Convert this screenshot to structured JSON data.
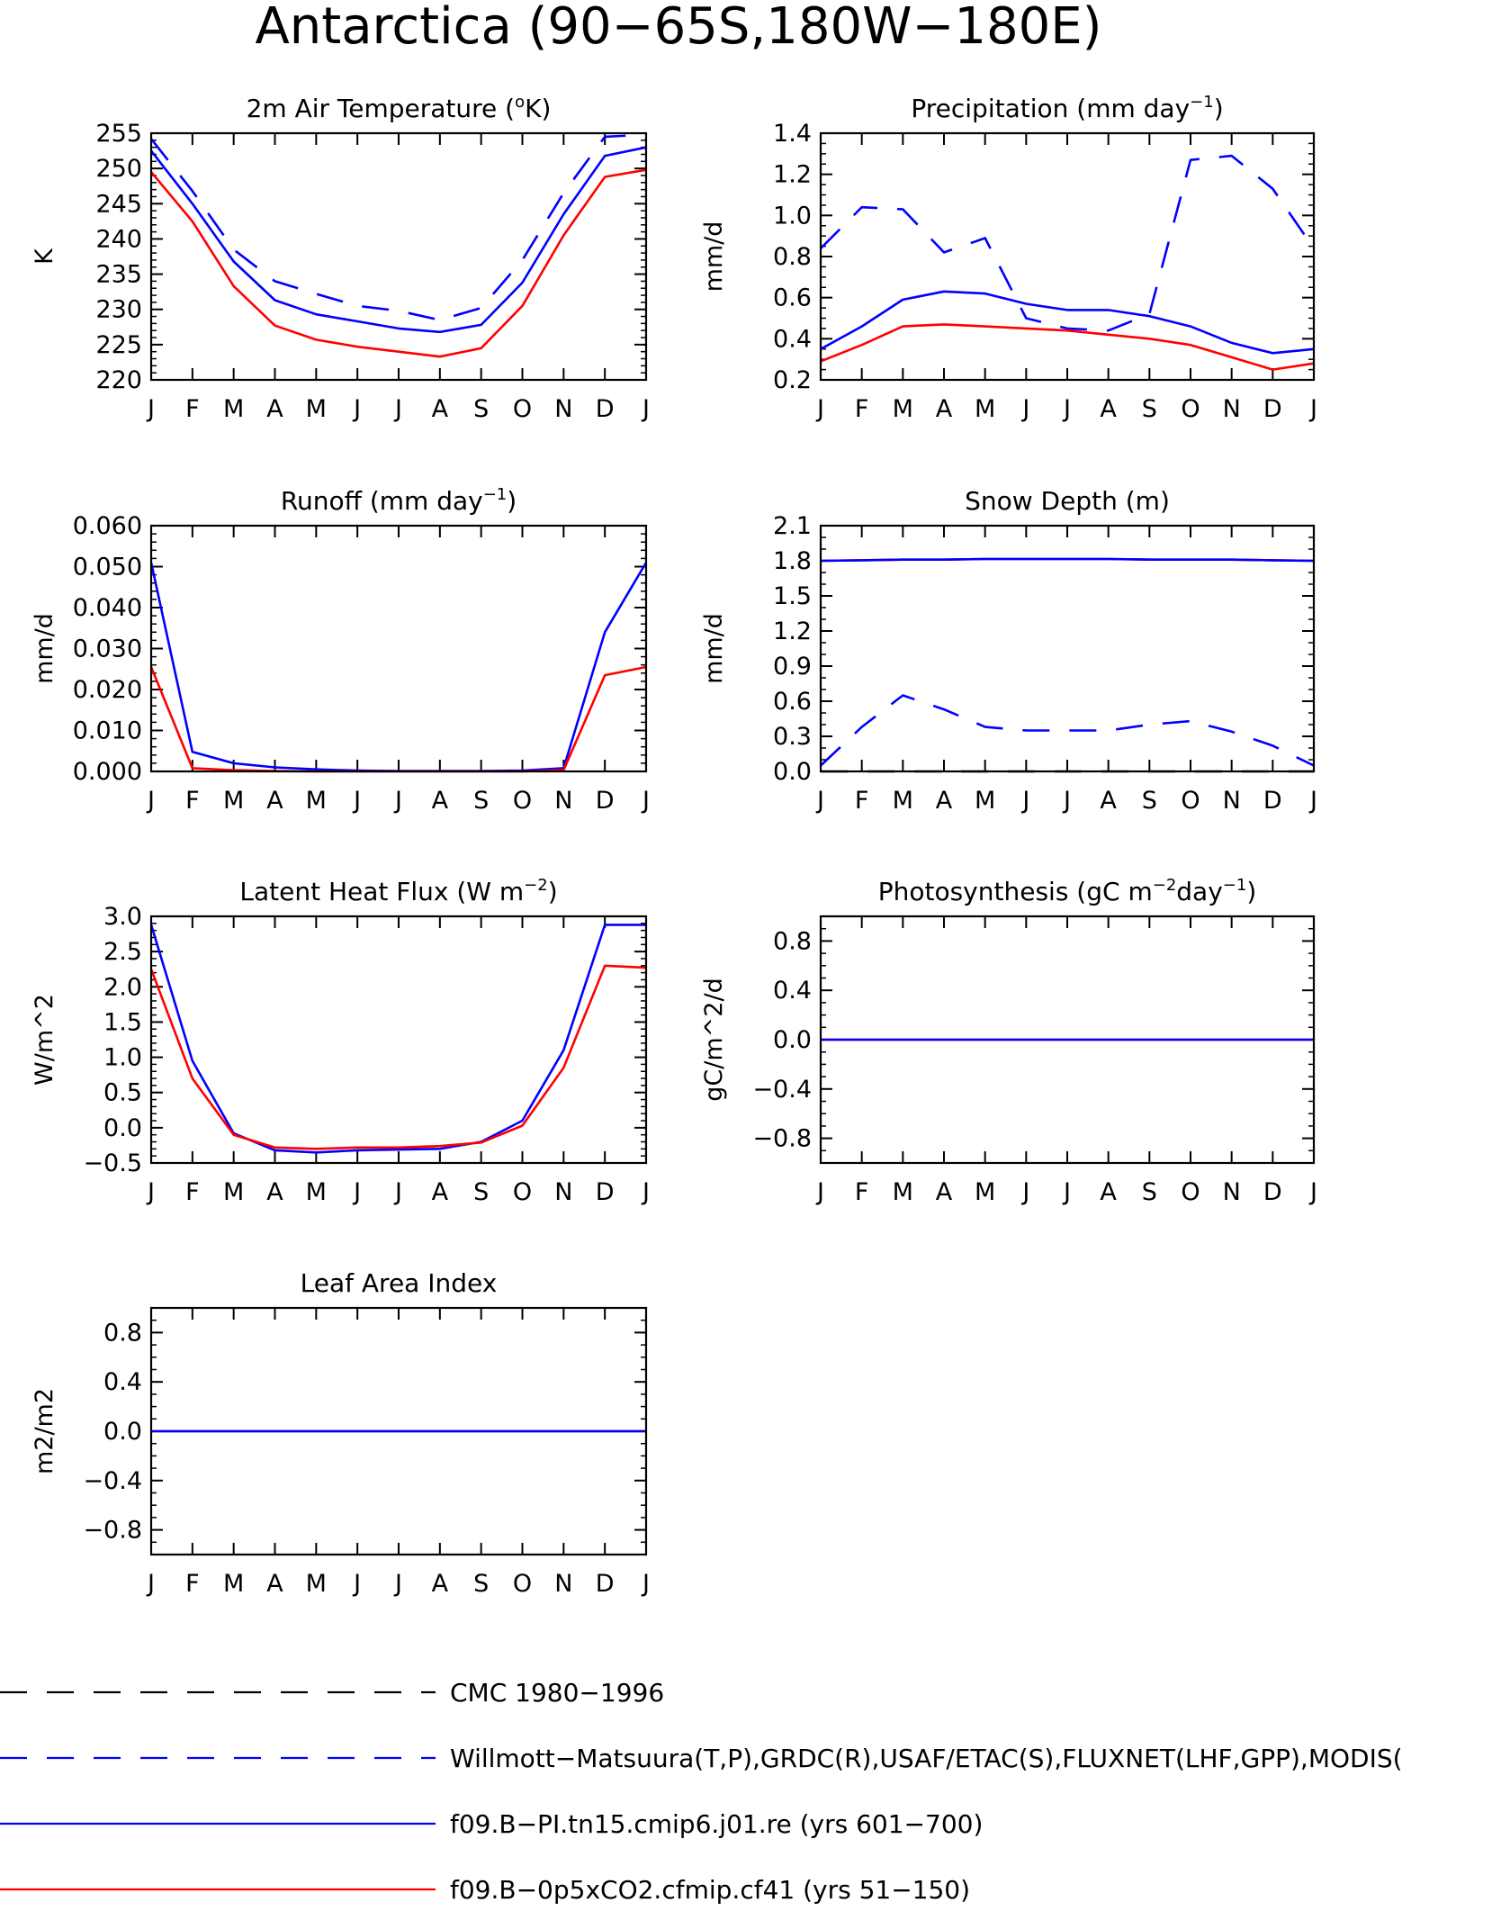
{
  "title": "Antarctica (90−65S,180W−180E)",
  "month_labels": [
    "J",
    "F",
    "M",
    "A",
    "M",
    "J",
    "J",
    "A",
    "S",
    "O",
    "N",
    "D",
    "J"
  ],
  "colors": {
    "obs_cmc": "#000000",
    "obs_multi": "#0000ff",
    "case1": "#0000ff",
    "case2": "#ff0000",
    "axis": "#000000"
  },
  "chart_data": [
    {
      "type": "line",
      "title_main": "2m Air Temperature (",
      "title_sup": "o",
      "title_tail": "K)",
      "ylabel": "K",
      "ylim": [
        220,
        255
      ],
      "yticks": [
        220,
        225,
        230,
        235,
        240,
        245,
        250,
        255
      ],
      "ytick_labels": [
        "220",
        "225",
        "230",
        "235",
        "240",
        "245",
        "250",
        "255"
      ],
      "minor_step": 1,
      "series": [
        {
          "line": "obs_multi",
          "dashed": true,
          "values": [
            254.2,
            246.8,
            238.5,
            234.0,
            232.2,
            230.5,
            229.8,
            228.5,
            230.2,
            237.0,
            246.5,
            254.5,
            254.8
          ]
        },
        {
          "line": "case1",
          "dashed": false,
          "values": [
            252.5,
            245.0,
            236.8,
            231.3,
            229.3,
            228.3,
            227.3,
            226.8,
            227.8,
            233.8,
            243.5,
            251.8,
            253.0
          ]
        },
        {
          "line": "case2",
          "dashed": false,
          "values": [
            249.5,
            242.5,
            233.3,
            227.7,
            225.7,
            224.7,
            224.0,
            223.3,
            224.5,
            230.5,
            240.5,
            248.8,
            249.8
          ]
        }
      ]
    },
    {
      "type": "line",
      "title_main": "Precipitation (mm day",
      "title_sup": "−1",
      "title_tail": ")",
      "ylabel": "mm/d",
      "ylim": [
        0.2,
        1.4
      ],
      "yticks": [
        0.2,
        0.4,
        0.6,
        0.8,
        1.0,
        1.2,
        1.4
      ],
      "ytick_labels": [
        "0.2",
        "0.4",
        "0.6",
        "0.8",
        "1.0",
        "1.2",
        "1.4"
      ],
      "minor_step": 0.05,
      "series": [
        {
          "line": "obs_multi",
          "dashed": true,
          "values": [
            0.84,
            1.04,
            1.03,
            0.82,
            0.89,
            0.5,
            0.45,
            0.44,
            0.52,
            1.27,
            1.29,
            1.13,
            0.84
          ]
        },
        {
          "line": "case1",
          "dashed": false,
          "values": [
            0.35,
            0.46,
            0.59,
            0.63,
            0.62,
            0.57,
            0.54,
            0.54,
            0.51,
            0.46,
            0.38,
            0.33,
            0.35
          ]
        },
        {
          "line": "case2",
          "dashed": false,
          "values": [
            0.29,
            0.37,
            0.46,
            0.47,
            0.46,
            0.45,
            0.44,
            0.42,
            0.4,
            0.37,
            0.31,
            0.25,
            0.28
          ]
        }
      ]
    },
    {
      "type": "line",
      "title_main": "Runoff (mm day",
      "title_sup": "−1",
      "title_tail": ")",
      "ylabel": "mm/d",
      "ylim": [
        0.0,
        0.06
      ],
      "yticks": [
        0.0,
        0.01,
        0.02,
        0.03,
        0.04,
        0.05,
        0.06
      ],
      "ytick_labels": [
        "0.000",
        "0.010",
        "0.020",
        "0.030",
        "0.040",
        "0.050",
        "0.060"
      ],
      "minor_step": 0.002,
      "series": [
        {
          "line": "case1",
          "dashed": false,
          "values": [
            0.051,
            0.0048,
            0.002,
            0.001,
            0.0005,
            0.0002,
            0.0001,
            0.0001,
            0.0001,
            0.0002,
            0.0008,
            0.034,
            0.051
          ]
        },
        {
          "line": "case2",
          "dashed": false,
          "values": [
            0.0255,
            0.0008,
            0.0003,
            0.0001,
            0.0,
            0.0,
            0.0,
            0.0,
            0.0,
            0.0,
            0.0003,
            0.0235,
            0.0255
          ]
        }
      ]
    },
    {
      "type": "line",
      "title_main": "Snow Depth (m)",
      "title_sup": "",
      "title_tail": "",
      "ylabel": "mm/d",
      "ylim": [
        0.0,
        2.1
      ],
      "yticks": [
        0.0,
        0.3,
        0.6,
        0.9,
        1.2,
        1.5,
        1.8,
        2.1
      ],
      "ytick_labels": [
        "0.0",
        "0.3",
        "0.6",
        "0.9",
        "1.2",
        "1.5",
        "1.8",
        "2.1"
      ],
      "minor_step": 0.1,
      "series": [
        {
          "line": "obs_cmc",
          "dashed": true,
          "values": [
            0.0,
            0.0,
            0.0,
            0.0,
            0.0,
            0.0,
            0.0,
            0.0,
            0.0,
            0.0,
            0.0,
            0.0,
            0.0
          ]
        },
        {
          "line": "obs_multi",
          "dashed": true,
          "values": [
            0.05,
            0.38,
            0.65,
            0.53,
            0.38,
            0.35,
            0.35,
            0.35,
            0.4,
            0.43,
            0.34,
            0.22,
            0.05
          ]
        },
        {
          "line": "case2",
          "dashed": false,
          "values": [
            1.8,
            1.805,
            1.81,
            1.81,
            1.815,
            1.815,
            1.815,
            1.815,
            1.81,
            1.81,
            1.81,
            1.805,
            1.8
          ]
        },
        {
          "line": "case1",
          "dashed": false,
          "values": [
            1.8,
            1.805,
            1.81,
            1.81,
            1.815,
            1.815,
            1.815,
            1.815,
            1.81,
            1.81,
            1.81,
            1.805,
            1.8
          ]
        }
      ]
    },
    {
      "type": "line",
      "title_main": "Latent Heat Flux (W m",
      "title_sup": "−2",
      "title_tail": ")",
      "ylabel": "W/m^2",
      "ylim": [
        -0.5,
        3.0
      ],
      "yticks": [
        -0.5,
        0.0,
        0.5,
        1.0,
        1.5,
        2.0,
        2.5,
        3.0
      ],
      "ytick_labels": [
        "−0.5",
        "0.0",
        "0.5",
        "1.0",
        "1.5",
        "2.0",
        "2.5",
        "3.0"
      ],
      "minor_step": 0.1,
      "series": [
        {
          "line": "case1",
          "dashed": false,
          "values": [
            2.88,
            0.95,
            -0.08,
            -0.32,
            -0.35,
            -0.32,
            -0.31,
            -0.3,
            -0.2,
            0.1,
            1.1,
            2.88,
            2.88
          ]
        },
        {
          "line": "case2",
          "dashed": false,
          "values": [
            2.25,
            0.7,
            -0.1,
            -0.28,
            -0.3,
            -0.28,
            -0.28,
            -0.26,
            -0.21,
            0.03,
            0.85,
            2.3,
            2.27
          ]
        }
      ]
    },
    {
      "type": "line",
      "title_main": "Photosynthesis (gC m",
      "title_sup": "−2",
      "title_tail": "day",
      "title_sup2": "−1",
      "title_tail2": ")",
      "ylabel": "gC/m^2/d",
      "ylim": [
        -1.0,
        1.0
      ],
      "yticks": [
        -0.8,
        -0.4,
        0.0,
        0.4,
        0.8
      ],
      "ytick_labels": [
        "−0.8",
        "−0.4",
        "0.0",
        "0.4",
        "0.8"
      ],
      "minor_step": 0.1,
      "series": [
        {
          "line": "case2",
          "dashed": false,
          "values": [
            0,
            0,
            0,
            0,
            0,
            0,
            0,
            0,
            0,
            0,
            0,
            0,
            0
          ]
        },
        {
          "line": "case1",
          "dashed": false,
          "values": [
            0,
            0,
            0,
            0,
            0,
            0,
            0,
            0,
            0,
            0,
            0,
            0,
            0
          ]
        }
      ]
    },
    {
      "type": "line",
      "title_main": "Leaf Area Index",
      "title_sup": "",
      "title_tail": "",
      "ylabel": "m2/m2",
      "ylim": [
        -1.0,
        1.0
      ],
      "yticks": [
        -0.8,
        -0.4,
        0.0,
        0.4,
        0.8
      ],
      "ytick_labels": [
        "−0.8",
        "−0.4",
        "0.0",
        "0.4",
        "0.8"
      ],
      "minor_step": 0.1,
      "series": [
        {
          "line": "case2",
          "dashed": false,
          "values": [
            0,
            0,
            0,
            0,
            0,
            0,
            0,
            0,
            0,
            0,
            0,
            0,
            0
          ]
        },
        {
          "line": "case1",
          "dashed": false,
          "values": [
            0,
            0,
            0,
            0,
            0,
            0,
            0,
            0,
            0,
            0,
            0,
            0,
            0
          ]
        }
      ]
    }
  ],
  "legend": [
    {
      "key": "obs_cmc",
      "dashed": true,
      "label": "CMC 1980−1996"
    },
    {
      "key": "obs_multi",
      "dashed": true,
      "label": "Willmott−Matsuura(T,P),GRDC(R),USAF/ETAC(S),FLUXNET(LHF,GPP),MODIS("
    },
    {
      "key": "case1",
      "dashed": false,
      "label": "f09.B−PI.tn15.cmip6.j01.re (yrs 601−700)"
    },
    {
      "key": "case2",
      "dashed": false,
      "label": "f09.B−0p5xCO2.cfmip.cf41 (yrs 51−150)"
    }
  ]
}
